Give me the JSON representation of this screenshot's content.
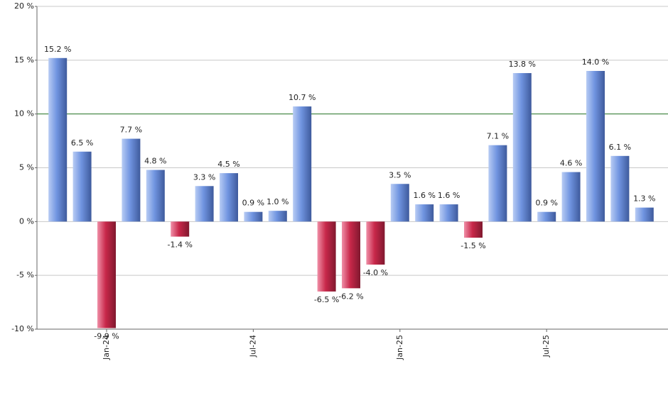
{
  "chart_data": {
    "type": "bar",
    "categories": [
      null,
      null,
      "Jan-24",
      null,
      null,
      null,
      null,
      null,
      "Jul-24",
      null,
      null,
      null,
      null,
      null,
      "Jan-25",
      null,
      null,
      null,
      null,
      null,
      "Jul-25",
      null,
      null,
      null,
      null
    ],
    "values": [
      15.2,
      6.5,
      -9.9,
      7.7,
      4.8,
      -1.4,
      3.3,
      4.5,
      0.9,
      1.0,
      10.7,
      -6.5,
      -6.2,
      -4.0,
      3.5,
      1.6,
      1.6,
      -1.5,
      7.1,
      13.8,
      0.9,
      4.6,
      14.0,
      6.1,
      1.3
    ],
    "value_labels": [
      "15.2 %",
      "6.5 %",
      "-9.9 %",
      "7.7 %",
      "4.8 %",
      "-1.4 %",
      "3.3 %",
      "4.5 %",
      "0.9 %",
      "1.0 %",
      "10.7 %",
      "-6.5 %",
      "-6.2 %",
      "-4.0 %",
      "3.5 %",
      "1.6 %",
      "1.6 %",
      "-1.5 %",
      "7.1 %",
      "13.8 %",
      "0.9 %",
      "4.6 %",
      "14.0 %",
      "6.1 %",
      "1.3 %"
    ],
    "positive_color": "#7094e0",
    "negative_color": "#c8284a",
    "reference_line": 10,
    "reference_color": "#2a7a2a",
    "ylim": [
      -10,
      20
    ],
    "yticks": [
      {
        "value": -10,
        "label": "-10 %"
      },
      {
        "value": -5,
        "label": "-5 %"
      },
      {
        "value": 0,
        "label": "0 %"
      },
      {
        "value": 5,
        "label": "5 %"
      },
      {
        "value": 10,
        "label": "10 %"
      },
      {
        "value": 15,
        "label": "15 %"
      },
      {
        "value": 20,
        "label": "20 %"
      }
    ],
    "grid": true
  }
}
